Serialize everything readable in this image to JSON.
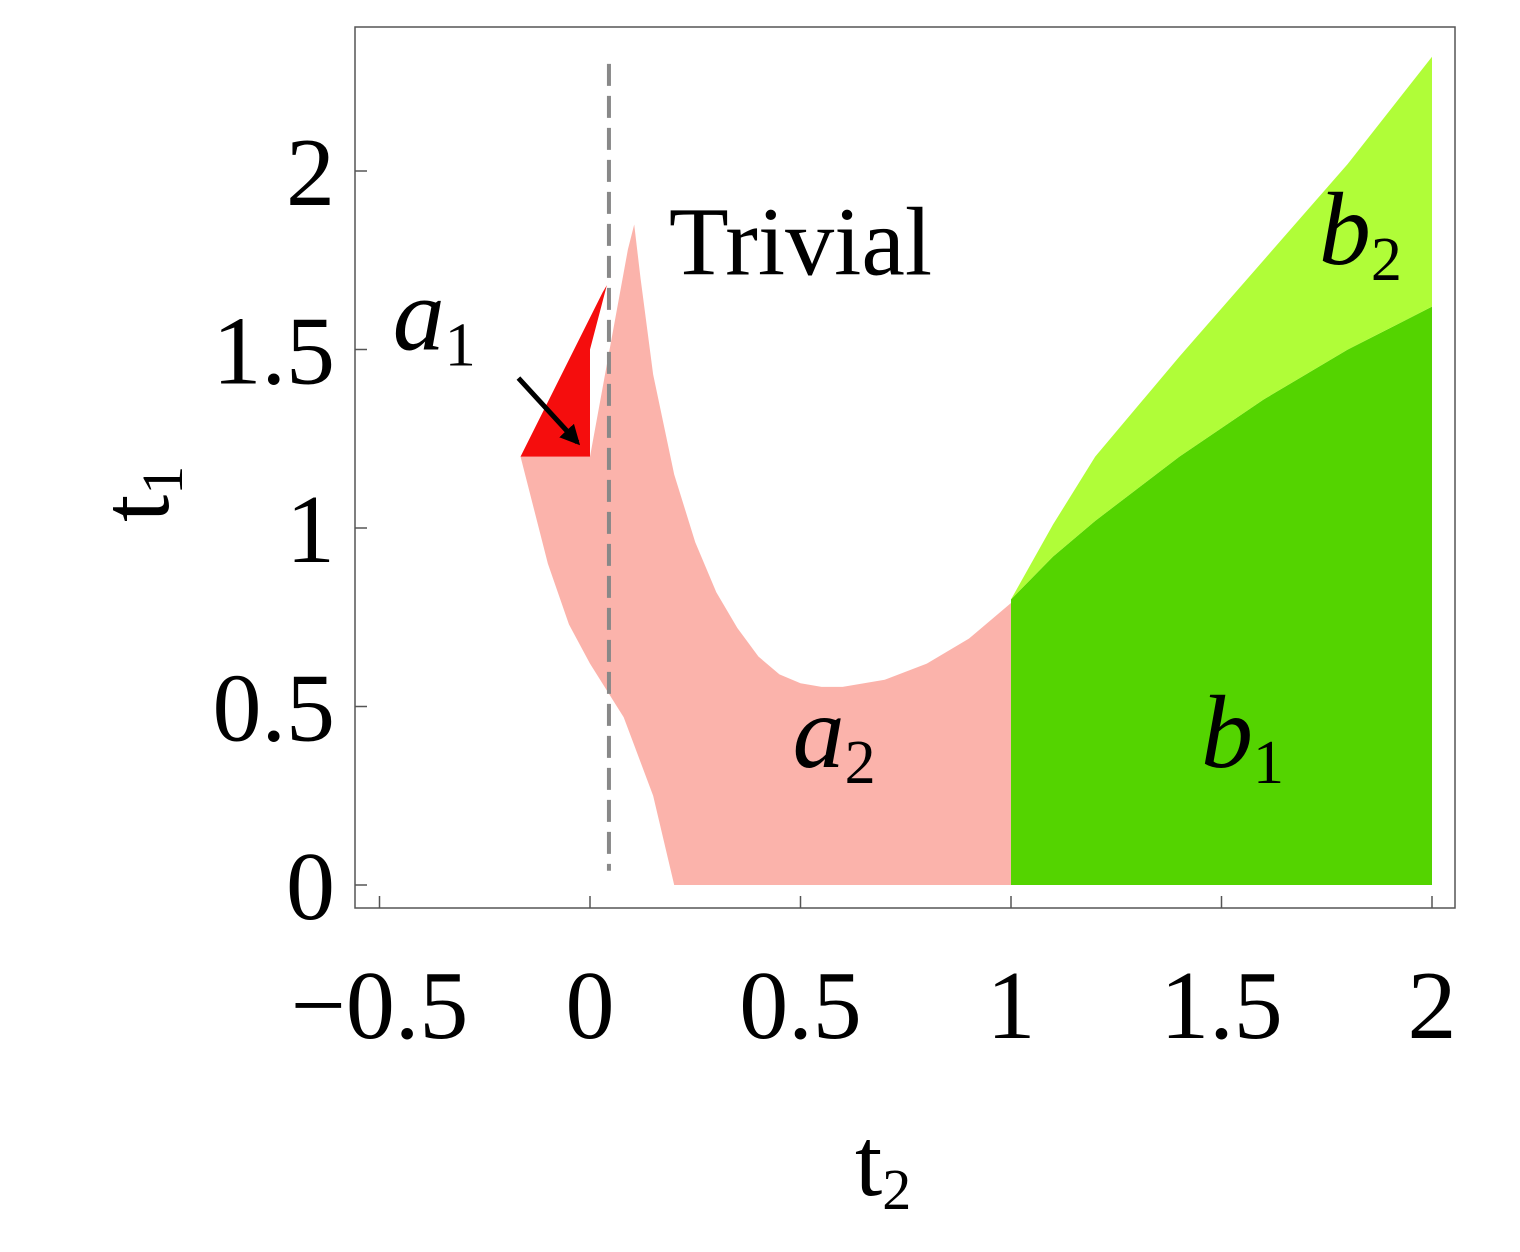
{
  "chart_data": {
    "type": "region-map",
    "title": "",
    "xlabel": "t",
    "xlabel_sub": "2",
    "ylabel": "t",
    "ylabel_sub": "1",
    "xlim": [
      -0.55,
      2.05
    ],
    "ylim": [
      -0.06,
      2.32
    ],
    "xticks": [
      {
        "value": -0.5,
        "label": "−0.5"
      },
      {
        "value": 0,
        "label": "0"
      },
      {
        "value": 0.5,
        "label": "0.5"
      },
      {
        "value": 1,
        "label": "1"
      },
      {
        "value": 1.5,
        "label": "1.5"
      },
      {
        "value": 2,
        "label": "2"
      }
    ],
    "yticks": [
      {
        "value": 0,
        "label": "0"
      },
      {
        "value": 0.5,
        "label": "0.5"
      },
      {
        "value": 1,
        "label": "1"
      },
      {
        "value": 1.5,
        "label": "1.5"
      },
      {
        "value": 2,
        "label": "2"
      }
    ],
    "grid": false,
    "dashed_line": {
      "x": 0.045,
      "y_range": [
        0.04,
        2.3
      ],
      "color": "#888888"
    },
    "regions": [
      {
        "name": "a2",
        "label": "a",
        "label_sub": "2",
        "color": "#fbb3ab",
        "polygon": [
          [
            -0.165,
            1.2
          ],
          [
            -0.03,
            1.2
          ],
          [
            0,
            1.2
          ],
          [
            0.09,
            1.78
          ],
          [
            0.105,
            1.85
          ],
          [
            0.12,
            1.7
          ],
          [
            0.15,
            1.43
          ],
          [
            0.2,
            1.15
          ],
          [
            0.25,
            0.96
          ],
          [
            0.3,
            0.82
          ],
          [
            0.35,
            0.72
          ],
          [
            0.4,
            0.64
          ],
          [
            0.45,
            0.59
          ],
          [
            0.5,
            0.565
          ],
          [
            0.55,
            0.555
          ],
          [
            0.6,
            0.555
          ],
          [
            0.7,
            0.575
          ],
          [
            0.8,
            0.62
          ],
          [
            0.9,
            0.69
          ],
          [
            1.0,
            0.79
          ],
          [
            1.0,
            0.0
          ],
          [
            0.2,
            0.0
          ],
          [
            0.15,
            0.25
          ],
          [
            0.08,
            0.47
          ],
          [
            0.0,
            0.62
          ],
          [
            -0.05,
            0.73
          ],
          [
            -0.1,
            0.9
          ],
          [
            -0.165,
            1.2
          ]
        ],
        "label_pos": [
          0.58,
          0.33
        ]
      },
      {
        "name": "a1",
        "label": "a",
        "label_sub": "1",
        "color": "#f50d0d",
        "polygon": [
          [
            -0.165,
            1.2
          ],
          [
            0.0,
            1.2
          ],
          [
            0.0,
            1.5
          ],
          [
            0.04,
            1.68
          ],
          [
            0.09,
            1.78
          ],
          [
            0.03,
            1.66
          ],
          [
            -0.165,
            1.2
          ]
        ],
        "label_pos": [
          -0.37,
          1.5
        ],
        "arrow": {
          "from": [
            -0.17,
            1.42
          ],
          "to": [
            -0.03,
            1.24
          ]
        }
      },
      {
        "name": "b1",
        "label": "b",
        "label_sub": "1",
        "color": "#54d400",
        "polygon": [
          [
            1.0,
            0.0
          ],
          [
            2.0,
            0.0
          ],
          [
            2.0,
            1.62
          ],
          [
            1.8,
            1.5
          ],
          [
            1.6,
            1.36
          ],
          [
            1.4,
            1.2
          ],
          [
            1.2,
            1.02
          ],
          [
            1.1,
            0.92
          ],
          [
            1.0,
            0.8
          ]
        ],
        "label_pos": [
          1.55,
          0.33
        ]
      },
      {
        "name": "b2",
        "label": "b",
        "label_sub": "2",
        "color": "#b0fd38",
        "polygon": [
          [
            1.0,
            0.8
          ],
          [
            1.1,
            0.92
          ],
          [
            1.2,
            1.02
          ],
          [
            1.4,
            1.2
          ],
          [
            1.6,
            1.36
          ],
          [
            1.8,
            1.5
          ],
          [
            2.0,
            1.62
          ],
          [
            2.0,
            2.32
          ],
          [
            1.8,
            2.02
          ],
          [
            1.6,
            1.75
          ],
          [
            1.4,
            1.48
          ],
          [
            1.2,
            1.2
          ],
          [
            1.1,
            1.01
          ],
          [
            1.0,
            0.8
          ]
        ],
        "label_pos": [
          1.83,
          1.74
        ]
      },
      {
        "name": "trivial",
        "label": "Trivial",
        "label_sub": "",
        "color": "#ffffff",
        "polygon": [],
        "label_pos": [
          0.5,
          1.71
        ]
      }
    ]
  }
}
